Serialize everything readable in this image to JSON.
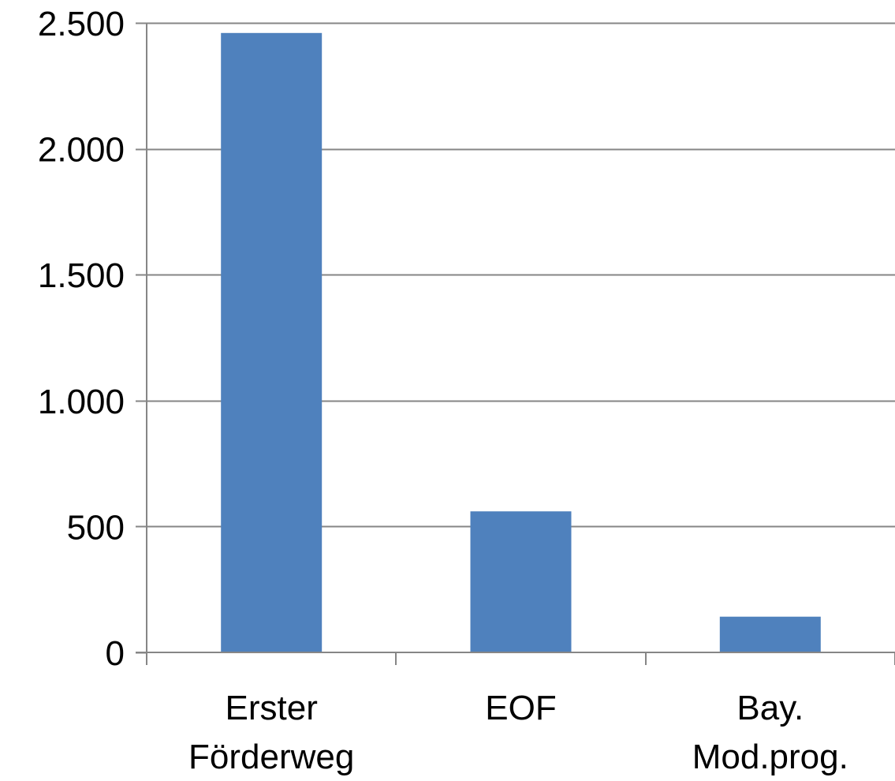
{
  "chart_data": {
    "type": "bar",
    "categories": [
      [
        "Erster",
        "Förderweg"
      ],
      [
        "EOF"
      ],
      [
        "Bay.",
        "Mod.prog."
      ]
    ],
    "series": [
      {
        "values": [
          2460,
          560,
          142
        ]
      }
    ],
    "ylim": [
      0,
      2500
    ],
    "yticks": [
      0,
      500,
      1000,
      1500,
      2000,
      2500
    ],
    "ytick_labels": [
      "0",
      "500",
      "1.000",
      "1.500",
      "2.000",
      "2.500"
    ],
    "grid": true,
    "legend": "none",
    "colors": {
      "bar": "#4F81BD",
      "grid": "#868686",
      "axis": "#868686"
    }
  }
}
